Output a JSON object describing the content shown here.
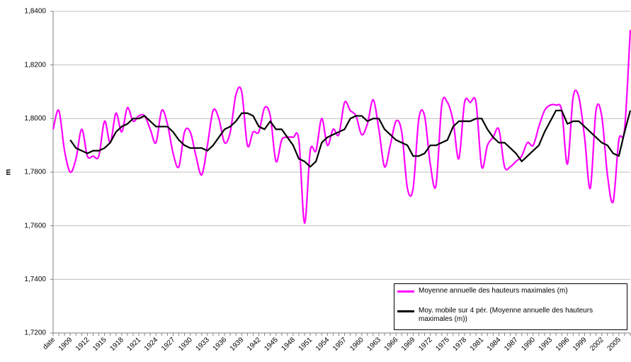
{
  "chart_data": {
    "type": "line",
    "ylabel": "m",
    "categories": [
      "date",
      null,
      null,
      "1909",
      null,
      null,
      "1912",
      null,
      null,
      "1915",
      null,
      null,
      "1918",
      null,
      null,
      "1921",
      null,
      null,
      "1924",
      null,
      null,
      "1927",
      null,
      null,
      "1930",
      null,
      null,
      "1933",
      null,
      null,
      "1936",
      null,
      null,
      "1939",
      null,
      null,
      "1942",
      null,
      null,
      "1945",
      null,
      null,
      "1948",
      null,
      null,
      "1951",
      null,
      null,
      "1954",
      null,
      null,
      "1957",
      null,
      null,
      "1960",
      null,
      null,
      "1963",
      null,
      null,
      "1966",
      null,
      null,
      "1969",
      null,
      null,
      "1972",
      null,
      null,
      "1975",
      null,
      null,
      "1978",
      null,
      null,
      "1981",
      null,
      null,
      "1984",
      null,
      null,
      "1987",
      null,
      null,
      "1990",
      null,
      null,
      "1993",
      null,
      null,
      "1996",
      null,
      null,
      "1999",
      null,
      null,
      "2002",
      null,
      null,
      "2005",
      null,
      null
    ],
    "series": [
      {
        "name": "Moyenne annuelle des hauteurs maximales (m)",
        "color": "#ff00ff",
        "smooth": true,
        "values": [
          1.796,
          1.803,
          1.788,
          1.78,
          1.785,
          1.796,
          1.786,
          1.786,
          1.786,
          1.799,
          1.791,
          1.802,
          1.795,
          1.804,
          1.799,
          1.801,
          1.801,
          1.796,
          1.791,
          1.803,
          1.798,
          1.787,
          1.782,
          1.795,
          1.795,
          1.786,
          1.779,
          1.79,
          1.803,
          1.8,
          1.791,
          1.795,
          1.809,
          1.81,
          1.79,
          1.795,
          1.795,
          1.804,
          1.801,
          1.784,
          1.792,
          1.793,
          1.793,
          1.792,
          1.761,
          1.788,
          1.788,
          1.8,
          1.79,
          1.796,
          1.794,
          1.806,
          1.803,
          1.801,
          1.794,
          1.798,
          1.807,
          1.796,
          1.782,
          1.79,
          1.799,
          1.795,
          1.774,
          1.774,
          1.8,
          1.801,
          1.783,
          1.775,
          1.805,
          1.806,
          1.799,
          1.785,
          1.806,
          1.806,
          1.806,
          1.782,
          1.79,
          1.793,
          1.796,
          1.782,
          1.782,
          1.784,
          1.786,
          1.791,
          1.79,
          1.797,
          1.803,
          1.805,
          1.805,
          1.803,
          1.783,
          1.808,
          1.808,
          1.793,
          1.774,
          1.803,
          1.801,
          1.779,
          1.769,
          1.792,
          1.796,
          1.833
        ]
      },
      {
        "name": "Moy. mobile sur 4 pér. (Moyenne annuelle des hauteurs maximales (m))",
        "color": "#000000",
        "smooth": false,
        "values": [
          null,
          null,
          null,
          1.792,
          1.789,
          1.788,
          1.787,
          1.788,
          1.788,
          1.789,
          1.791,
          1.795,
          1.797,
          1.798,
          1.8,
          1.8,
          1.801,
          1.799,
          1.797,
          1.797,
          1.797,
          1.795,
          1.792,
          1.79,
          1.789,
          1.789,
          1.789,
          1.788,
          1.79,
          1.793,
          1.796,
          1.797,
          1.799,
          1.802,
          1.802,
          1.801,
          1.797,
          1.796,
          1.799,
          1.796,
          1.796,
          1.793,
          1.79,
          1.785,
          1.784,
          1.782,
          1.784,
          1.791,
          1.793,
          1.794,
          1.795,
          1.796,
          1.8,
          1.801,
          1.801,
          1.799,
          1.8,
          1.8,
          1.796,
          1.794,
          1.792,
          1.791,
          1.79,
          1.786,
          1.786,
          1.787,
          1.79,
          1.79,
          1.791,
          1.792,
          1.797,
          1.799,
          1.799,
          1.799,
          1.8,
          1.8,
          1.796,
          1.793,
          1.791,
          1.791,
          1.789,
          1.787,
          1.784,
          1.786,
          1.788,
          1.79,
          1.795,
          1.799,
          1.803,
          1.803,
          1.798,
          1.799,
          1.799,
          1.797,
          1.795,
          1.793,
          1.791,
          1.79,
          1.787,
          1.786,
          1.795,
          1.803
        ]
      }
    ],
    "ylim": [
      1.72,
      1.84
    ],
    "yticks": [
      {
        "value": 1.72,
        "label": "1,7200"
      },
      {
        "value": 1.74,
        "label": "1,7400"
      },
      {
        "value": 1.76,
        "label": "1,7600"
      },
      {
        "value": 1.78,
        "label": "1,7800"
      },
      {
        "value": 1.8,
        "label": "1,8000"
      },
      {
        "value": 1.82,
        "label": "1,8200"
      },
      {
        "value": 1.84,
        "label": "1,8400"
      }
    ],
    "grid": true,
    "legend": "lower right"
  }
}
